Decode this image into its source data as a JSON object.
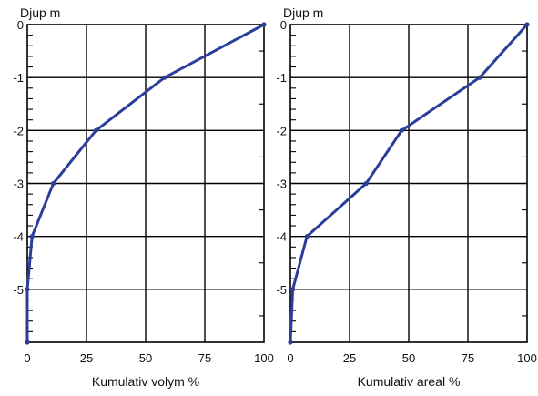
{
  "chart_data": [
    {
      "type": "line",
      "ylabel": "Djup m",
      "xlabel": "Kumulativ volym %",
      "xlim": [
        0,
        100
      ],
      "ylim": [
        -6,
        0
      ],
      "x_ticks": [
        0,
        25,
        50,
        75,
        100
      ],
      "y_ticks": [
        0,
        -1,
        -2,
        -3,
        -4,
        -5
      ],
      "grid": true,
      "series": [
        {
          "x": [
            100,
            58,
            29,
            11,
            2,
            0,
            0
          ],
          "y": [
            0,
            -1,
            -2,
            -3,
            -4,
            -5,
            -6
          ]
        }
      ],
      "colors": {
        "line": "#2b3f9a"
      }
    },
    {
      "type": "line",
      "ylabel": "Djup m",
      "xlabel": "Kumulativ areal %",
      "xlim": [
        0,
        100
      ],
      "ylim": [
        -6,
        0
      ],
      "x_ticks": [
        0,
        25,
        50,
        75,
        100
      ],
      "y_ticks": [
        0,
        -1,
        -2,
        -3,
        -4,
        -5
      ],
      "grid": true,
      "series": [
        {
          "x": [
            100,
            80,
            47,
            32,
            7,
            1,
            0
          ],
          "y": [
            0,
            -1,
            -2,
            -3,
            -4,
            -5,
            -6
          ]
        }
      ],
      "colors": {
        "line": "#2b3f9a"
      }
    }
  ]
}
